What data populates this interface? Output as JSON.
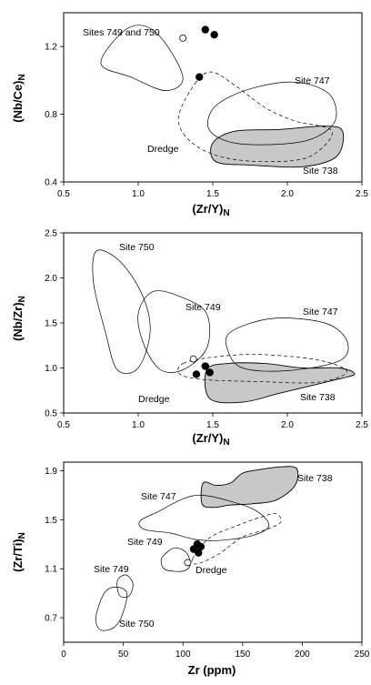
{
  "chart_data": [
    {
      "type": "scatter",
      "xlabel": "(Zr/Y)",
      "xlabel_sub": "N",
      "ylabel": "(Nb/Ce)",
      "ylabel_sub": "N",
      "xlim": [
        0.5,
        2.5
      ],
      "ylim": [
        0.4,
        1.4
      ],
      "xticks": [
        "0.5",
        "1.0",
        "1.5",
        "2.0",
        "2.5"
      ],
      "yticks": [
        "0.4",
        "0.8",
        "1.2"
      ],
      "points_filled": [
        [
          1.45,
          1.3
        ],
        [
          1.51,
          1.27
        ],
        [
          1.41,
          1.02
        ]
      ],
      "points_open": [
        [
          1.3,
          1.25
        ]
      ],
      "fields": [
        {
          "name": "Sites 749 and 750",
          "style": "outline",
          "shape": [
            [
              0.75,
              1.1
            ],
            [
              0.9,
              1.29
            ],
            [
              1.05,
              1.32
            ],
            [
              1.19,
              1.21
            ],
            [
              1.3,
              1.01
            ],
            [
              1.18,
              0.94
            ],
            [
              0.95,
              1.02
            ]
          ]
        },
        {
          "name": "Site 747",
          "style": "outline",
          "shape": [
            [
              1.52,
              0.85
            ],
            [
              1.75,
              0.95
            ],
            [
              2.05,
              0.99
            ],
            [
              2.28,
              0.92
            ],
            [
              2.32,
              0.76
            ],
            [
              2.15,
              0.65
            ],
            [
              1.85,
              0.62
            ],
            [
              1.6,
              0.64
            ],
            [
              1.47,
              0.72
            ]
          ]
        },
        {
          "name": "Site 738",
          "style": "filled",
          "shape": [
            [
              1.5,
              0.63
            ],
            [
              1.65,
              0.7
            ],
            [
              1.95,
              0.71
            ],
            [
              2.25,
              0.73
            ],
            [
              2.37,
              0.7
            ],
            [
              2.33,
              0.55
            ],
            [
              2.1,
              0.49
            ],
            [
              1.75,
              0.5
            ],
            [
              1.52,
              0.52
            ]
          ]
        },
        {
          "name": "Dredge",
          "style": "dashed",
          "shape": [
            [
              1.38,
              0.98
            ],
            [
              1.49,
              1.05
            ],
            [
              1.65,
              0.97
            ],
            [
              1.85,
              0.84
            ],
            [
              2.05,
              0.76
            ],
            [
              2.3,
              0.7
            ],
            [
              2.15,
              0.55
            ],
            [
              1.85,
              0.52
            ],
            [
              1.55,
              0.55
            ],
            [
              1.35,
              0.64
            ],
            [
              1.27,
              0.78
            ]
          ]
        }
      ],
      "annotations": [
        "Sites 749 and 750",
        "Site 747",
        "Site 738",
        "Dredge"
      ]
    },
    {
      "type": "scatter",
      "xlabel": "(Zr/Y)",
      "xlabel_sub": "N",
      "ylabel": "(Nb/Zr)",
      "ylabel_sub": "N",
      "xlim": [
        0.5,
        2.5
      ],
      "ylim": [
        0.5,
        2.5
      ],
      "xticks": [
        "0.5",
        "1.0",
        "1.5",
        "2.0",
        "2.5"
      ],
      "yticks": [
        "0.5",
        "1.0",
        "1.5",
        "2.0",
        "2.5"
      ],
      "points_filled": [
        [
          1.45,
          1.02
        ],
        [
          1.48,
          0.95
        ],
        [
          1.39,
          0.93
        ]
      ],
      "points_open": [
        [
          1.37,
          1.1
        ]
      ],
      "fields": [
        {
          "name": "Site 750",
          "style": "outline",
          "shape": [
            [
              0.72,
              2.3
            ],
            [
              0.88,
              2.18
            ],
            [
              1.03,
              1.8
            ],
            [
              1.08,
              1.4
            ],
            [
              1.0,
              1.0
            ],
            [
              0.86,
              0.98
            ],
            [
              0.78,
              1.4
            ],
            [
              0.7,
              1.95
            ]
          ]
        },
        {
          "name": "Site 749",
          "style": "outline",
          "shape": [
            [
              1.0,
              1.6
            ],
            [
              1.1,
              1.85
            ],
            [
              1.3,
              1.78
            ],
            [
              1.46,
              1.6
            ],
            [
              1.46,
              1.22
            ],
            [
              1.3,
              0.98
            ],
            [
              1.15,
              0.98
            ],
            [
              1.04,
              1.25
            ]
          ]
        },
        {
          "name": "Site 747",
          "style": "outline",
          "shape": [
            [
              1.62,
              1.4
            ],
            [
              1.9,
              1.55
            ],
            [
              2.25,
              1.5
            ],
            [
              2.4,
              1.3
            ],
            [
              2.35,
              1.08
            ],
            [
              2.0,
              0.97
            ],
            [
              1.7,
              1.0
            ],
            [
              1.6,
              1.2
            ]
          ]
        },
        {
          "name": "Site 738",
          "style": "filled",
          "shape": [
            [
              1.46,
              0.98
            ],
            [
              1.6,
              1.05
            ],
            [
              1.85,
              1.05
            ],
            [
              2.1,
              1.0
            ],
            [
              2.35,
              1.0
            ],
            [
              2.45,
              0.93
            ],
            [
              2.3,
              0.86
            ],
            [
              1.95,
              0.72
            ],
            [
              1.7,
              0.62
            ],
            [
              1.48,
              0.66
            ]
          ]
        },
        {
          "name": "Dredge",
          "style": "dashed",
          "shape": [
            [
              1.3,
              1.05
            ],
            [
              1.5,
              1.12
            ],
            [
              1.8,
              1.15
            ],
            [
              2.2,
              1.09
            ],
            [
              2.4,
              0.96
            ],
            [
              2.2,
              0.84
            ],
            [
              1.8,
              0.85
            ],
            [
              1.45,
              0.87
            ],
            [
              1.28,
              0.93
            ]
          ]
        }
      ],
      "annotations": [
        "Site 750",
        "Site 749",
        "Site 747",
        "Site 738",
        "Dredge"
      ]
    },
    {
      "type": "scatter",
      "xlabel": "Zr (ppm)",
      "xlabel_sub": "",
      "ylabel": "(Zr/Ti)",
      "ylabel_sub": "N",
      "xlim": [
        0,
        250
      ],
      "ylim": [
        0.5,
        1.97
      ],
      "xticks": [
        "0",
        "50",
        "100",
        "150",
        "200",
        "250"
      ],
      "yticks": [
        "0.7",
        "1.1",
        "1.5",
        "1.9"
      ],
      "points_filled": [
        [
          112,
          1.3
        ],
        [
          115,
          1.28
        ],
        [
          109,
          1.26
        ],
        [
          113,
          1.23
        ]
      ],
      "points_open": [
        [
          104,
          1.15
        ]
      ],
      "fields": [
        {
          "name": "Site 738",
          "style": "filled",
          "shape": [
            [
              117,
              1.8
            ],
            [
              128,
              1.78
            ],
            [
              140,
              1.8
            ],
            [
              150,
              1.88
            ],
            [
              165,
              1.91
            ],
            [
              180,
              1.93
            ],
            [
              195,
              1.92
            ],
            [
              194,
              1.78
            ],
            [
              178,
              1.66
            ],
            [
              158,
              1.63
            ],
            [
              140,
              1.62
            ],
            [
              125,
              1.6
            ],
            [
              116,
              1.63
            ]
          ]
        },
        {
          "name": "Site 747",
          "style": "outline",
          "shape": [
            [
              64,
              1.49
            ],
            [
              80,
              1.57
            ],
            [
              100,
              1.67
            ],
            [
              116,
              1.7
            ],
            [
              140,
              1.65
            ],
            [
              162,
              1.57
            ],
            [
              172,
              1.45
            ],
            [
              158,
              1.37
            ],
            [
              130,
              1.33
            ],
            [
              110,
              1.34
            ],
            [
              90,
              1.39
            ],
            [
              68,
              1.42
            ]
          ]
        },
        {
          "name": "Site 749",
          "style": "outline",
          "shape": [
            [
              83,
              1.2
            ],
            [
              93,
              1.27
            ],
            [
              103,
              1.23
            ],
            [
              106,
              1.13
            ],
            [
              100,
              1.08
            ],
            [
              86,
              1.09
            ],
            [
              82,
              1.14
            ]
          ]
        },
        {
          "name": "Site 749",
          "style": "outline",
          "shape": [
            [
              45,
              1.0
            ],
            [
              52,
              1.05
            ],
            [
              58,
              0.98
            ],
            [
              55,
              0.88
            ],
            [
              47,
              0.88
            ]
          ]
        },
        {
          "name": "Site 750",
          "style": "outline",
          "shape": [
            [
              27,
              0.7
            ],
            [
              34,
              0.9
            ],
            [
              44,
              0.95
            ],
            [
              53,
              0.9
            ],
            [
              49,
              0.72
            ],
            [
              42,
              0.62
            ],
            [
              31,
              0.6
            ]
          ]
        },
        {
          "name": "Dredge",
          "style": "dashed",
          "shape": [
            [
              108,
              1.18
            ],
            [
              122,
              1.35
            ],
            [
              145,
              1.45
            ],
            [
              165,
              1.52
            ],
            [
              178,
              1.55
            ],
            [
              182,
              1.48
            ],
            [
              170,
              1.42
            ],
            [
              150,
              1.36
            ],
            [
              130,
              1.22
            ],
            [
              112,
              1.14
            ]
          ]
        }
      ],
      "annotations": [
        "Site 738",
        "Site 747",
        "Site 749",
        "Site 749",
        "Site 750",
        "Dredge"
      ]
    }
  ]
}
